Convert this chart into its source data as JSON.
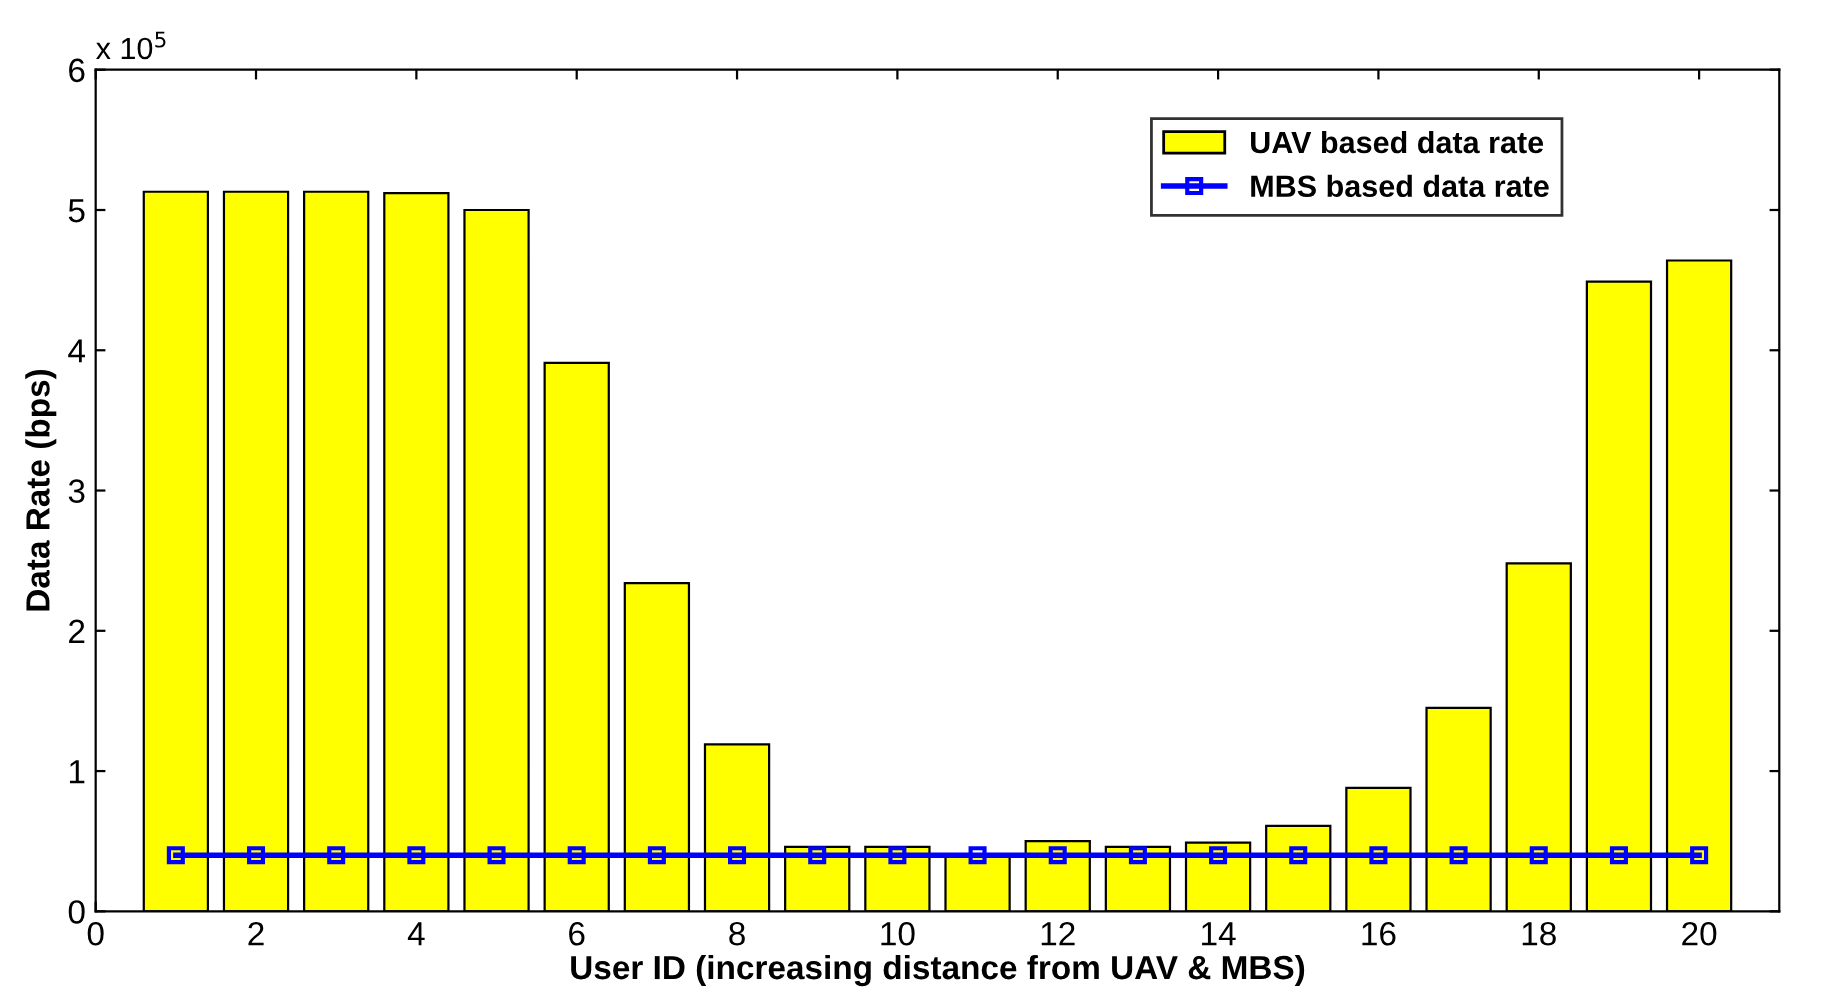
{
  "chart_data": {
    "type": "bar",
    "xlabel": "User ID (increasing distance from UAV & MBS)",
    "ylabel": "Data Rate (bps)",
    "x": [
      1,
      2,
      3,
      4,
      5,
      6,
      7,
      8,
      9,
      10,
      11,
      12,
      13,
      14,
      15,
      16,
      17,
      18,
      19,
      20
    ],
    "series": [
      {
        "name": "UAV based data rate",
        "color": "#ffff00",
        "values": [
          5.13,
          5.13,
          5.13,
          5.12,
          5.0,
          3.91,
          2.34,
          1.19,
          0.46,
          0.46,
          0.4,
          0.5,
          0.46,
          0.49,
          0.61,
          0.88,
          1.45,
          2.48,
          4.49,
          4.64
        ]
      },
      {
        "name": "MBS based data rate",
        "type": "line",
        "color": "#0000ff",
        "marker": "square",
        "values": [
          0.4,
          0.4,
          0.4,
          0.4,
          0.4,
          0.4,
          0.4,
          0.4,
          0.4,
          0.4,
          0.4,
          0.4,
          0.4,
          0.4,
          0.4,
          0.4,
          0.4,
          0.4,
          0.4,
          0.4
        ]
      }
    ],
    "xlim": [
      0,
      21
    ],
    "xticks": [
      0,
      2,
      4,
      6,
      8,
      10,
      12,
      14,
      16,
      18,
      20
    ],
    "ylim": [
      0,
      6
    ],
    "yticks": [
      0,
      1,
      2,
      3,
      4,
      5,
      6
    ],
    "annotations": [
      "x 10$^{5}$"
    ],
    "legend": "top right",
    "grid": false
  }
}
